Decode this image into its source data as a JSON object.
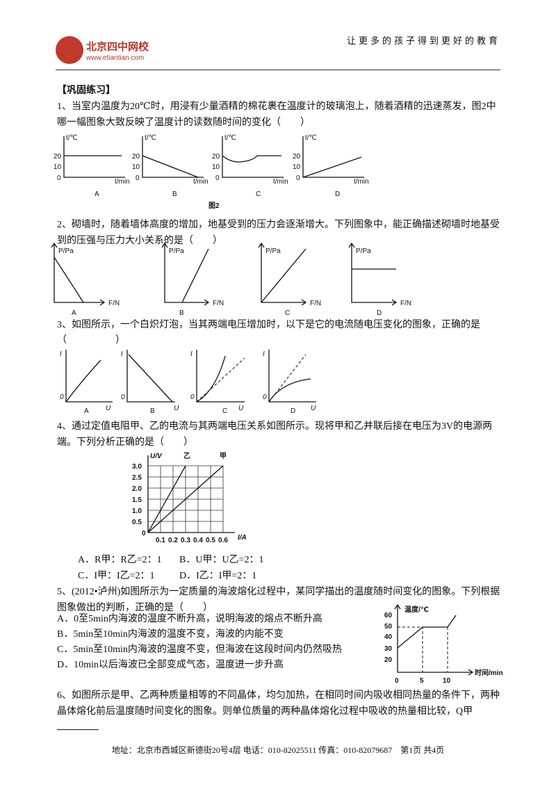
{
  "header": {
    "slogan": "让更多的孩子得到更好的教育",
    "logo_name": "北京四中网校",
    "logo_url": "www.etiantian.com"
  },
  "section_title": "【巩固练习】",
  "q1": {
    "text": "1、当室内温度为20℃时，用浸有少量酒精的棉花裹在温度计的玻璃泡上，随着酒精的迅速蒸发，图2中哪一幅图象大致反映了温度计的读数随时间的变化（　　）",
    "y_label": "t/℃",
    "x_label": "t/min",
    "yticks": [
      "20",
      "10",
      "0"
    ],
    "labels": [
      "A",
      "B",
      "C",
      "D"
    ],
    "caption": "图2"
  },
  "q2": {
    "text": "2、砌墙时，随着墙体高度的增加，地基受到的压力会逐渐增大。下列图象中，能正确描述砌墙时地基受到的压强与压力大小关系的是（　　）",
    "y_label": "P/Pa",
    "x_label": "F/N",
    "labels": [
      "A",
      "B",
      "C",
      "D"
    ]
  },
  "q3": {
    "text": "3、如图所示，一个白炽灯泡，当其两端电压增加时，以下是它的电流随电压变化的图象，正确的是",
    "paren": "（　　　　　）",
    "y_label": "I",
    "x_label": "U",
    "origin": "0",
    "labels": [
      "A",
      "B",
      "C",
      "D"
    ]
  },
  "q4": {
    "text": "4、通过定值电阻甲、乙的电流与其两端电压关系如图所示。现将甲和乙并联后接在电压为3V的电源两端。下列分析正确的是（　　）",
    "y_label": "U/V",
    "x_label": "I/A",
    "yticks": [
      "3.0",
      "2.5",
      "2.0",
      "1.5",
      "1.0",
      "0.5"
    ],
    "xticks": [
      "0.1",
      "0.2",
      "0.3",
      "0.4",
      "0.5",
      "0.6"
    ],
    "origin": "0",
    "line_labels": [
      "乙",
      "甲"
    ],
    "options": [
      "A．R甲：R乙=2：1",
      "B．U甲：U乙=2：1",
      "C．I甲：I乙=2：1",
      "D．I乙：I甲=2：1"
    ]
  },
  "q5": {
    "text": "5、(2012•泸州)如图所示为一定质量的海波熔化过程中，某同学描出的温度随时间变化的图象。下列根据图象做出的判断，正确的是（　　）",
    "options": [
      "A．0至5min内海波的温度不断升高，说明海波的熔点不断升高",
      "B．5min至10min内海波的温度不变，海波的内能不变",
      "C．5min至10min内海波的温度不变，但海波在这段时间内仍然吸热",
      "D．10min以后海波已全部变成气态，温度进一步升高"
    ],
    "y_label": "温度/℃",
    "x_label": "时间/min",
    "yticks": [
      "60",
      "50",
      "40",
      "30",
      "20"
    ],
    "xticks": [
      "0",
      "5",
      "10"
    ]
  },
  "q6": {
    "text": "6、如图所示是甲、乙两种质量相等的不同晶体，均匀加热，在相同时间内吸收相同热量的条件下，两种晶体熔化前后温度随时间变化的图象。则单位质量的两种晶体熔化过程中吸收的热量相比较，Q甲"
  },
  "footer": "地址：北京市西城区新德街20号4层 电话：010-82025511 传真：010-82079687　第1页 共4页"
}
